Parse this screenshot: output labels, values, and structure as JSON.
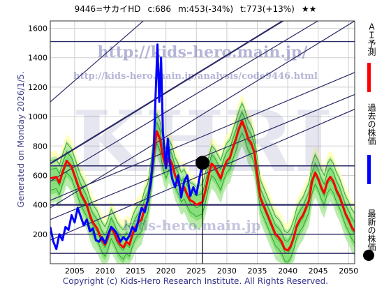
{
  "header": {
    "ticker": "9446=サカイHD",
    "current": "c:686",
    "low_target": "m:453(-34%)",
    "high_target": "t:773(+13%)",
    "rating": "★★"
  },
  "side_note": "Generated on Monday 2026/1/5.",
  "footer": "Copyright (c) Kids-Hero Research Institute. All Rights Reserved.",
  "watermarks": {
    "url_main": "http://kids-hero.main.jp/",
    "url_analysis": "http://kids-hero.main.jp/analysis/code9446.html",
    "big": "KHRI",
    "lower": "kids-hero.main.jp"
  },
  "legend": {
    "ai_label": "ＡＩ予測",
    "past_label": "過去の株価",
    "latest_label": "最新の株価",
    "ai_color": "#ff0000",
    "past_color": "#0000ff",
    "latest_color": "#000000"
  },
  "chart_data": {
    "type": "line",
    "xlim": [
      2001,
      2051
    ],
    "ylim": [
      0,
      1650
    ],
    "x_ticks": [
      2005,
      2010,
      2015,
      2020,
      2025,
      2030,
      2035,
      2040,
      2045,
      2050
    ],
    "y_ticks": [
      200,
      400,
      600,
      800,
      1000,
      1200,
      1400,
      1600
    ],
    "grid": true,
    "colors": {
      "past": "#0000ff",
      "ai": "#ff0000",
      "band_outer": "#aee8a0",
      "band_inner": "#4cd14c",
      "yellow": "#ffffb8",
      "hline": "#2a2a66"
    },
    "horizontal_lines": [
      70,
      200,
      400,
      665,
      1510
    ],
    "latest_point": {
      "x": 2026.0,
      "y": 686
    },
    "series": [
      {
        "name": "過去の株価",
        "color": "#0000ff",
        "points": [
          [
            2001.0,
            250
          ],
          [
            2001.5,
            150
          ],
          [
            2002.0,
            100
          ],
          [
            2002.5,
            200
          ],
          [
            2003.0,
            160
          ],
          [
            2003.5,
            250
          ],
          [
            2004.0,
            230
          ],
          [
            2004.5,
            330
          ],
          [
            2005.0,
            280
          ],
          [
            2005.5,
            380
          ],
          [
            2006.0,
            320
          ],
          [
            2006.5,
            260
          ],
          [
            2007.0,
            300
          ],
          [
            2007.5,
            220
          ],
          [
            2008.0,
            240
          ],
          [
            2008.5,
            160
          ],
          [
            2009.0,
            150
          ],
          [
            2009.5,
            180
          ],
          [
            2010.0,
            140
          ],
          [
            2010.5,
            200
          ],
          [
            2011.0,
            250
          ],
          [
            2011.5,
            230
          ],
          [
            2012.0,
            200
          ],
          [
            2012.5,
            150
          ],
          [
            2013.0,
            180
          ],
          [
            2013.5,
            160
          ],
          [
            2014.0,
            190
          ],
          [
            2014.5,
            250
          ],
          [
            2015.0,
            220
          ],
          [
            2015.5,
            300
          ],
          [
            2016.0,
            380
          ],
          [
            2016.5,
            350
          ],
          [
            2017.0,
            430
          ],
          [
            2017.5,
            550
          ],
          [
            2018.0,
            780
          ],
          [
            2018.3,
            1150
          ],
          [
            2018.6,
            1490
          ],
          [
            2018.9,
            1100
          ],
          [
            2019.2,
            1400
          ],
          [
            2019.5,
            900
          ],
          [
            2019.8,
            750
          ],
          [
            2020.0,
            650
          ],
          [
            2020.3,
            850
          ],
          [
            2020.6,
            700
          ],
          [
            2021.0,
            580
          ],
          [
            2021.5,
            520
          ],
          [
            2022.0,
            600
          ],
          [
            2022.5,
            450
          ],
          [
            2023.0,
            560
          ],
          [
            2023.5,
            600
          ],
          [
            2024.0,
            460
          ],
          [
            2024.5,
            520
          ],
          [
            2025.0,
            470
          ],
          [
            2025.5,
            580
          ],
          [
            2026.0,
            686
          ]
        ]
      },
      {
        "name": "ＡＩ予測",
        "color": "#ff0000",
        "points": [
          [
            2001.0,
            580
          ],
          [
            2002.0,
            590
          ],
          [
            2002.5,
            550
          ],
          [
            2003.0,
            620
          ],
          [
            2003.7,
            700
          ],
          [
            2004.5,
            660
          ],
          [
            2005.0,
            600
          ],
          [
            2005.5,
            540
          ],
          [
            2006.0,
            480
          ],
          [
            2007.0,
            400
          ],
          [
            2007.5,
            330
          ],
          [
            2008.0,
            280
          ],
          [
            2008.7,
            240
          ],
          [
            2009.5,
            160
          ],
          [
            2010.0,
            130
          ],
          [
            2010.5,
            180
          ],
          [
            2011.0,
            250
          ],
          [
            2011.5,
            210
          ],
          [
            2012.0,
            160
          ],
          [
            2012.5,
            130
          ],
          [
            2013.0,
            110
          ],
          [
            2013.5,
            150
          ],
          [
            2014.0,
            130
          ],
          [
            2014.5,
            200
          ],
          [
            2015.0,
            250
          ],
          [
            2015.5,
            280
          ],
          [
            2016.0,
            300
          ],
          [
            2016.5,
            380
          ],
          [
            2017.0,
            420
          ],
          [
            2017.5,
            560
          ],
          [
            2018.0,
            740
          ],
          [
            2018.5,
            900
          ],
          [
            2019.0,
            850
          ],
          [
            2019.5,
            730
          ],
          [
            2020.0,
            660
          ],
          [
            2020.5,
            720
          ],
          [
            2021.0,
            680
          ],
          [
            2021.5,
            600
          ],
          [
            2022.0,
            560
          ],
          [
            2022.5,
            500
          ],
          [
            2023.0,
            520
          ],
          [
            2023.5,
            470
          ],
          [
            2024.0,
            430
          ],
          [
            2024.5,
            420
          ],
          [
            2025.0,
            400
          ],
          [
            2026.0,
            420
          ],
          [
            2026.5,
            500
          ],
          [
            2027.0,
            600
          ],
          [
            2027.5,
            680
          ],
          [
            2028.0,
            660
          ],
          [
            2028.5,
            620
          ],
          [
            2029.0,
            580
          ],
          [
            2029.5,
            650
          ],
          [
            2030.0,
            700
          ],
          [
            2030.5,
            720
          ],
          [
            2031.0,
            790
          ],
          [
            2031.5,
            850
          ],
          [
            2032.0,
            920
          ],
          [
            2032.5,
            970
          ],
          [
            2033.0,
            920
          ],
          [
            2033.5,
            850
          ],
          [
            2034.0,
            820
          ],
          [
            2034.5,
            760
          ],
          [
            2035.0,
            600
          ],
          [
            2035.5,
            450
          ],
          [
            2036.0,
            400
          ],
          [
            2036.5,
            350
          ],
          [
            2037.0,
            300
          ],
          [
            2037.5,
            250
          ],
          [
            2038.0,
            200
          ],
          [
            2038.5,
            180
          ],
          [
            2039.0,
            150
          ],
          [
            2039.5,
            100
          ],
          [
            2040.0,
            90
          ],
          [
            2040.5,
            120
          ],
          [
            2041.0,
            180
          ],
          [
            2041.5,
            260
          ],
          [
            2042.0,
            300
          ],
          [
            2042.5,
            330
          ],
          [
            2043.0,
            380
          ],
          [
            2043.5,
            430
          ],
          [
            2044.0,
            560
          ],
          [
            2044.5,
            620
          ],
          [
            2045.0,
            580
          ],
          [
            2045.5,
            520
          ],
          [
            2046.0,
            480
          ],
          [
            2046.5,
            560
          ],
          [
            2047.0,
            590
          ],
          [
            2047.5,
            560
          ],
          [
            2048.0,
            500
          ],
          [
            2048.5,
            460
          ],
          [
            2049.0,
            400
          ],
          [
            2049.5,
            340
          ],
          [
            2050.0,
            300
          ],
          [
            2050.5,
            250
          ],
          [
            2051.0,
            220
          ]
        ]
      }
    ]
  }
}
